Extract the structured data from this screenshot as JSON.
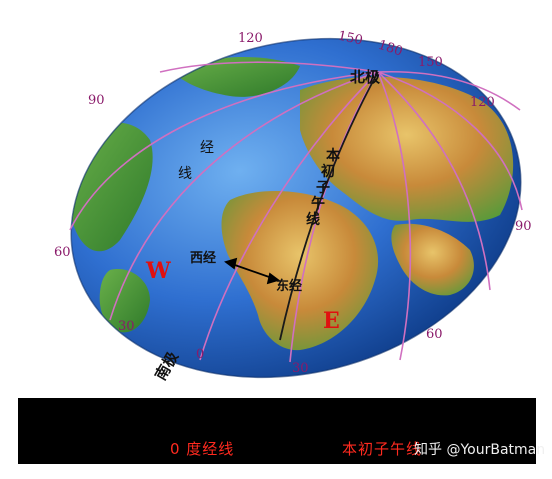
{
  "globe": {
    "north_pole": "北极",
    "south_pole": "南极",
    "meridian_label": "经线",
    "prime_meridian_label": "本初子午线",
    "west_symbol": "W",
    "east_symbol": "E",
    "west_longitude": "西经",
    "east_longitude": "东经",
    "top_labels": [
      "120",
      "150",
      "180",
      "150",
      "120"
    ],
    "left_labels": [
      "90",
      "60",
      "30"
    ],
    "right_labels": [
      "90",
      "60",
      "30"
    ],
    "bottom_zero": "0"
  },
  "caption": {
    "zero_meridian": "0 度经线",
    "prime_meridian": "本初子午线"
  },
  "watermark": "知乎 @YourBatman",
  "colors": {
    "ocean": "#2f6fd0",
    "meridian": "#d070c0",
    "label_purple": "#8a1a6a",
    "accent_red": "#e01010",
    "caption_red": "#ff2a1f"
  }
}
